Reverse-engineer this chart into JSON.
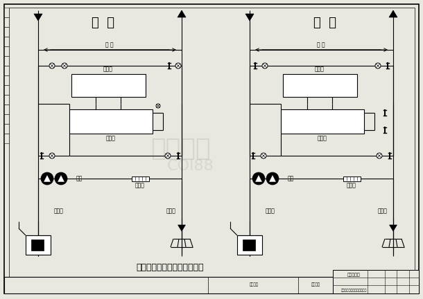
{
  "title": "冷水机组冷暖系统工艺流程图",
  "summer_label": "夏  季",
  "winter_label": "冬  季",
  "user_label": "用 户",
  "evaporator_label": "蒸发器",
  "condenser_label": "冷凝器",
  "pump_label": "水泵",
  "pressure_valve_label": "压差阀",
  "source_well_label": "抽水井",
  "return_well_label": "回水井",
  "bg_color": "#e8e8e0",
  "line_color": "#000000",
  "title_fontsize": 9,
  "label_fontsize": 5.5,
  "small_fontsize": 4.0,
  "section_title_fontsize": 13
}
